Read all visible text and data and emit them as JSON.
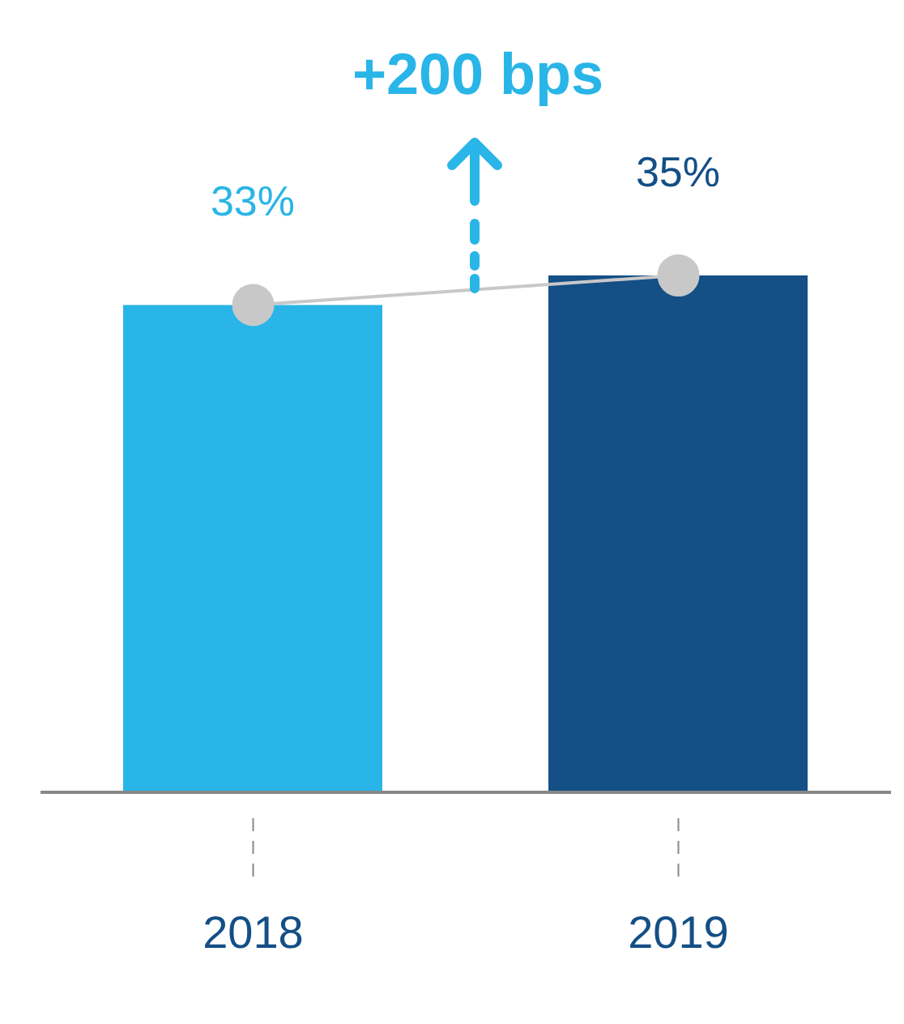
{
  "chart_data": {
    "type": "bar",
    "title": "+200 bps",
    "categories": [
      "2018",
      "2019"
    ],
    "series": [
      {
        "colors": [
          "#29b5e8",
          "#144f86"
        ],
        "values": [
          33,
          35
        ],
        "value_labels": [
          "33%",
          "35%"
        ]
      },
      {
        "type": "line",
        "color": "#c8c8c8",
        "marker": "circle",
        "values": [
          33,
          35
        ]
      }
    ]
  }
}
